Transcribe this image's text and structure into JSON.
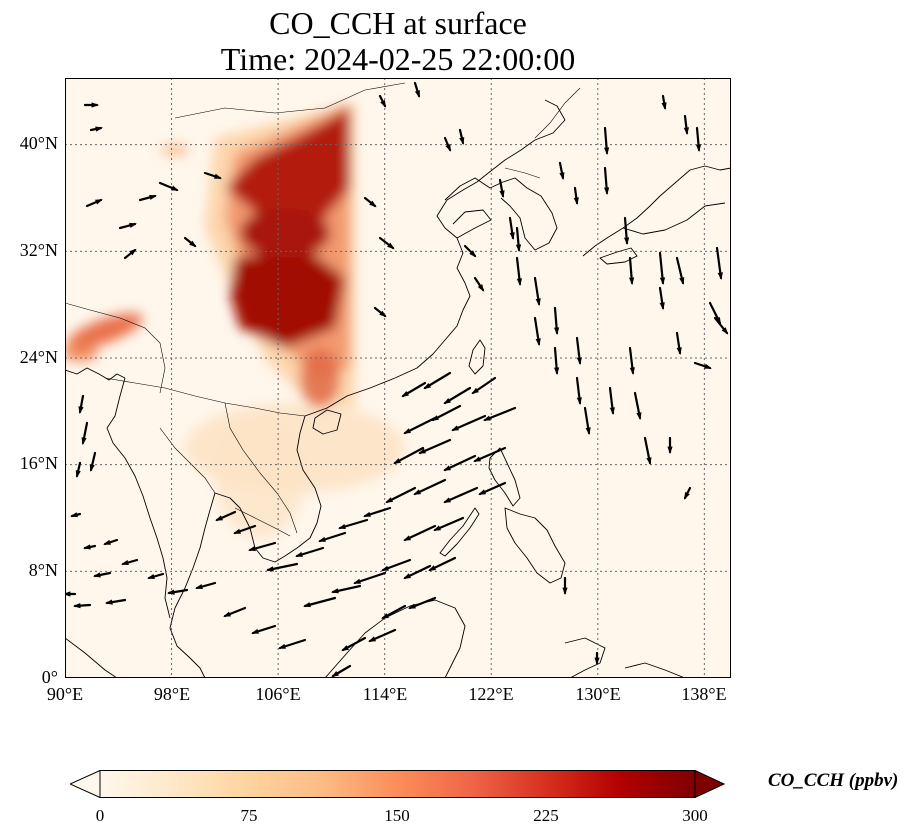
{
  "title": {
    "line1": "CO_CCH at surface",
    "line2": "Time: 2024-02-25 22:00:00"
  },
  "map": {
    "projection": "PlateCarree",
    "lon_range": [
      90,
      140
    ],
    "lat_range": [
      0,
      45
    ],
    "gridlines": true,
    "gridline_style": "dotted",
    "variable": "CO_CCH",
    "level": "surface",
    "wind_vectors": true,
    "plume_regions": [
      {
        "name": "Central/North China",
        "lon": [
          102.5,
          111
        ],
        "lat": [
          25,
          43.5
        ],
        "level": "high"
      },
      {
        "name": "NE India / Bangladesh",
        "lon": [
          90,
          96
        ],
        "lat": [
          24.5,
          27.5
        ],
        "level": "moderate"
      },
      {
        "name": "South China coast",
        "lon": [
          105,
          112
        ],
        "lat": [
          18,
          25
        ],
        "level": "low"
      },
      {
        "name": "Mainland SE Asia",
        "lon": [
          98,
          108
        ],
        "lat": [
          15,
          22
        ],
        "level": "low"
      }
    ]
  },
  "axes": {
    "y_ticks": [
      "0°",
      "8°N",
      "16°N",
      "24°N",
      "32°N",
      "40°N"
    ],
    "x_ticks": [
      "90°E",
      "98°E",
      "106°E",
      "114°E",
      "122°E",
      "130°E",
      "138°E"
    ]
  },
  "colorbar": {
    "label": "CO_CCH (ppbv)",
    "min": 0,
    "max": 300,
    "ticks": [
      "0",
      "75",
      "150",
      "225",
      "300"
    ],
    "extend": "both",
    "colormap": "OrRd",
    "colors": [
      "#fff7ec",
      "#fee8c8",
      "#fdd49e",
      "#fdbb84",
      "#fc8d59",
      "#ef6548",
      "#d7301f",
      "#b30000",
      "#7f0000"
    ]
  }
}
